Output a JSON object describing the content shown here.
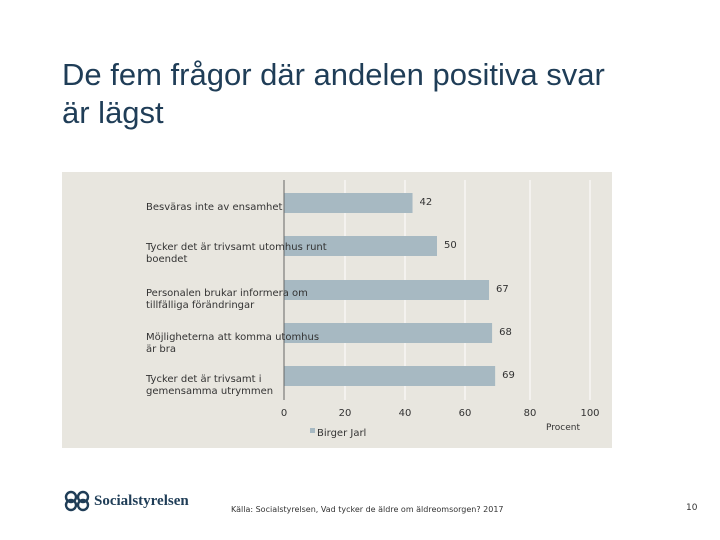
{
  "slide": {
    "title_line1": "De fem frågor där andelen positiva svar",
    "title_line2": "är lägst",
    "logo_text": "Socialstyrelsen",
    "source": "Källa: Socialstyrelsen, Vad tycker de äldre om äldreomsorgen? 2017",
    "page_number": "10"
  },
  "chart_data": {
    "type": "bar",
    "orientation": "horizontal",
    "categories": [
      "Besväras inte av ensamhet",
      "Tycker det är trivsamt utomhus runt boendet",
      "Personalen brukar informera om tillfälliga förändringar",
      "Möjligheterna att komma utomhus är bra",
      "Tycker det är trivsamt i gemensamma utrymmen"
    ],
    "series": [
      {
        "name": "Birger Jarl",
        "values": [
          42,
          50,
          67,
          68,
          69
        ]
      }
    ],
    "xlim": [
      0,
      100
    ],
    "xticks": [
      "0",
      "20",
      "40",
      "60",
      "80",
      "100"
    ],
    "xlabel": "Procent",
    "bar_color": "#a7b9c2",
    "panel_color": "#e8e6df",
    "grid": true,
    "legend_position": "bottom"
  }
}
